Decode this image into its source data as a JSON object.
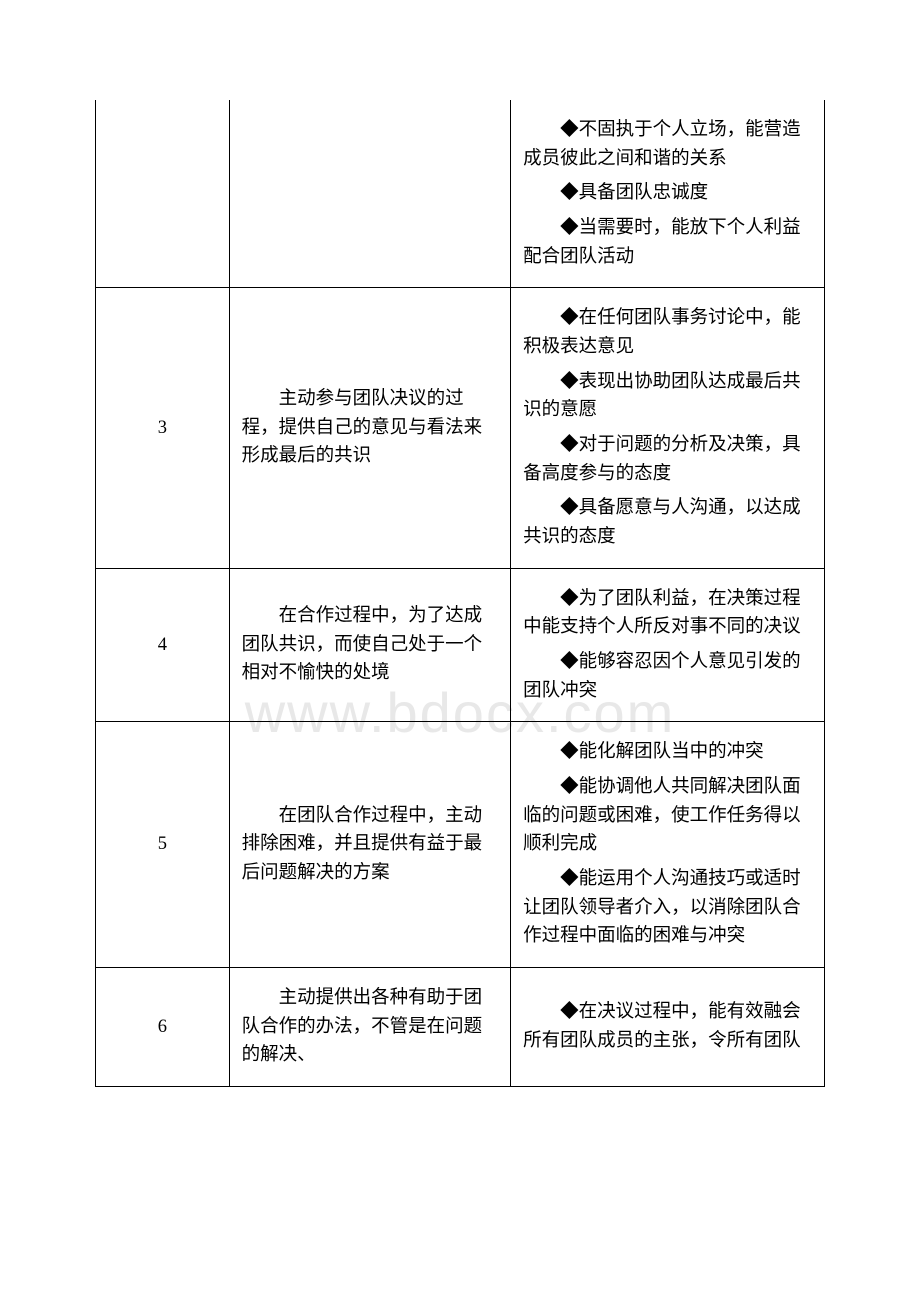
{
  "watermark": "www.bdocx.com",
  "table": {
    "columns": {
      "col1_width": 132,
      "col2_width": 278,
      "col3_width": 310
    },
    "colors": {
      "border": "#000000",
      "text": "#000000",
      "background": "#ffffff",
      "watermark": "#e8e8e8"
    },
    "font_size": 18.5,
    "rows": [
      {
        "level": "",
        "desc": "",
        "bullets": [
          "◆不固执于个人立场，能营造成员彼此之间和谐的关系",
          "◆具备团队忠诚度",
          "◆当需要时，能放下个人利益配合团队活动"
        ],
        "no_top": true
      },
      {
        "level": "3",
        "desc": "主动参与团队决议的过程，提供自己的意见与看法来形成最后的共识",
        "bullets": [
          "◆在任何团队事务讨论中，能积极表达意见",
          "◆表现出协助团队达成最后共识的意愿",
          "◆对于问题的分析及决策，具备高度参与的态度",
          "◆具备愿意与人沟通，以达成共识的态度"
        ]
      },
      {
        "level": "4",
        "desc": "在合作过程中，为了达成团队共识，而使自己处于一个相对不愉快的处境",
        "bullets": [
          "◆为了团队利益，在决策过程中能支持个人所反对事不同的决议",
          "◆能够容忍因个人意见引发的团队冲突"
        ]
      },
      {
        "level": "5",
        "desc": "在团队合作过程中，主动排除困难，并且提供有益于最后问题解决的方案",
        "bullets": [
          "◆能化解团队当中的冲突",
          "◆能协调他人共同解决团队面临的问题或困难，使工作任务得以顺利完成",
          "◆能运用个人沟通技巧或适时让团队领导者介入，以消除团队合作过程中面临的困难与冲突"
        ]
      },
      {
        "level": "6",
        "desc": "主动提供出各种有助于团队合作的办法，不管是在问题的解决、",
        "bullets": [
          "◆在决议过程中，能有效融会所有团队成员的主张，令所有团队"
        ]
      }
    ]
  }
}
